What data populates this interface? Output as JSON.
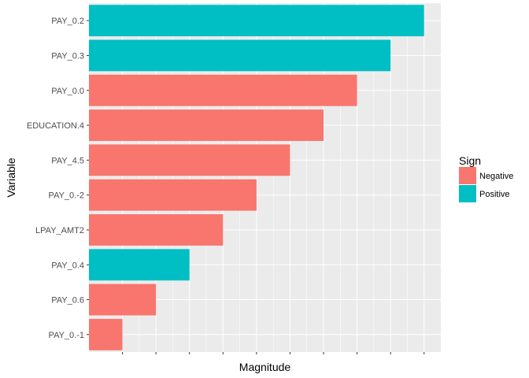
{
  "chart_data": {
    "type": "bar",
    "orientation": "horizontal",
    "xlabel": "Magnitude",
    "ylabel": "Variable",
    "x_tick_labels_shown": false,
    "grid": true,
    "legend": {
      "title": "Sign",
      "placement": "right",
      "entries": [
        {
          "label": "Negative",
          "color": "#F8766D"
        },
        {
          "label": "Positive",
          "color": "#00BFC4"
        }
      ]
    },
    "xlim": [
      0,
      10.5
    ],
    "bars": [
      {
        "category": "PAY_0.2",
        "value": 10,
        "sign": "Positive"
      },
      {
        "category": "PAY_0.3",
        "value": 9,
        "sign": "Positive"
      },
      {
        "category": "PAY_0.0",
        "value": 8,
        "sign": "Negative"
      },
      {
        "category": "EDUCATION.4",
        "value": 7,
        "sign": "Negative"
      },
      {
        "category": "PAY_4.5",
        "value": 6,
        "sign": "Negative"
      },
      {
        "category": "PAY_0.-2",
        "value": 5,
        "sign": "Negative"
      },
      {
        "category": "LPAY_AMT2",
        "value": 4,
        "sign": "Negative"
      },
      {
        "category": "PAY_0.4",
        "value": 3,
        "sign": "Positive"
      },
      {
        "category": "PAY_0.6",
        "value": 2,
        "sign": "Negative"
      },
      {
        "category": "PAY_0.-1",
        "value": 1,
        "sign": "Negative"
      }
    ],
    "colors": {
      "panel": "#EBEBEB",
      "grid": "#FFFFFF",
      "tick": "#333333"
    }
  }
}
